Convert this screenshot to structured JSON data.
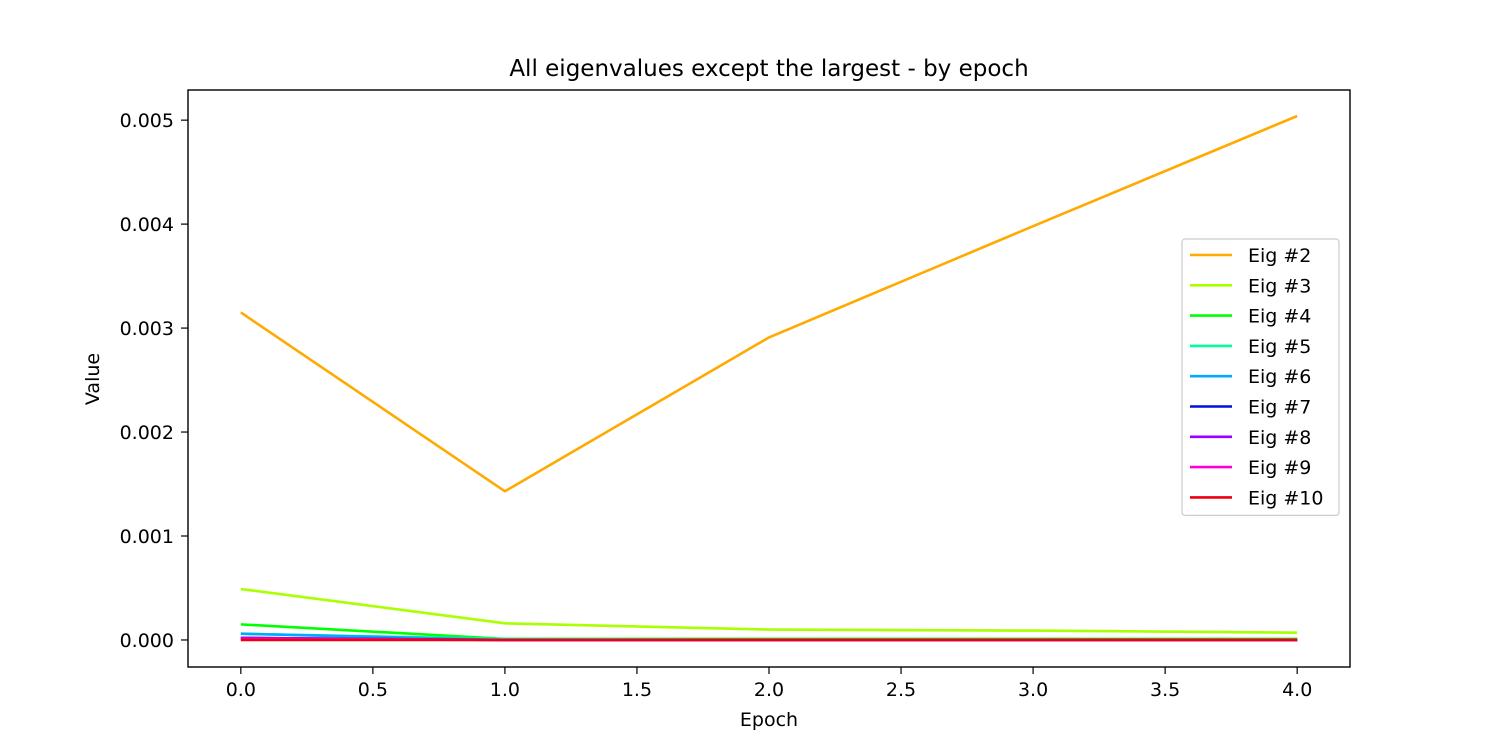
{
  "chart_data": {
    "type": "line",
    "title": "All eigenvalues except the largest - by epoch",
    "xlabel": "Epoch",
    "ylabel": "Value",
    "x": [
      0,
      1,
      2,
      3,
      4
    ],
    "xlim": [
      -0.2,
      4.2
    ],
    "ylim": [
      -0.00026,
      0.00529
    ],
    "xticks": [
      "0.0",
      "0.5",
      "1.0",
      "1.5",
      "2.0",
      "2.5",
      "3.0",
      "3.5",
      "4.0"
    ],
    "xtick_values": [
      0,
      0.5,
      1,
      1.5,
      2,
      2.5,
      3,
      3.5,
      4
    ],
    "yticks": [
      "0.000",
      "0.001",
      "0.002",
      "0.003",
      "0.004",
      "0.005"
    ],
    "ytick_values": [
      0,
      0.001,
      0.002,
      0.003,
      0.004,
      0.005
    ],
    "grid": false,
    "legend_position": "right",
    "series": [
      {
        "name": "Eig #2",
        "color": "#ffaa00",
        "values": [
          0.00315,
          0.00143,
          0.00291,
          0.00398,
          0.00504
        ]
      },
      {
        "name": "Eig #3",
        "color": "#aaff00",
        "values": [
          0.00049,
          0.00016,
          0.0001,
          9e-05,
          7e-05
        ]
      },
      {
        "name": "Eig #4",
        "color": "#00ff00",
        "values": [
          0.00015,
          1e-05,
          1e-05,
          1e-05,
          1e-05
        ]
      },
      {
        "name": "Eig #5",
        "color": "#00ff99",
        "values": [
          6e-05,
          1e-05,
          0.0,
          0.0,
          0.0
        ]
      },
      {
        "name": "Eig #6",
        "color": "#00aaff",
        "values": [
          6e-05,
          0.0,
          0.0,
          0.0,
          0.0
        ]
      },
      {
        "name": "Eig #7",
        "color": "#0011dd",
        "values": [
          2e-05,
          0.0,
          0.0,
          0.0,
          0.0
        ]
      },
      {
        "name": "Eig #8",
        "color": "#9900ff",
        "values": [
          2e-05,
          0.0,
          0.0,
          0.0,
          0.0
        ]
      },
      {
        "name": "Eig #9",
        "color": "#ff00cc",
        "values": [
          1e-05,
          0.0,
          0.0,
          0.0,
          0.0
        ]
      },
      {
        "name": "Eig #10",
        "color": "#ee0011",
        "values": [
          0.0,
          0.0,
          0.0,
          0.0,
          0.0
        ]
      }
    ]
  }
}
